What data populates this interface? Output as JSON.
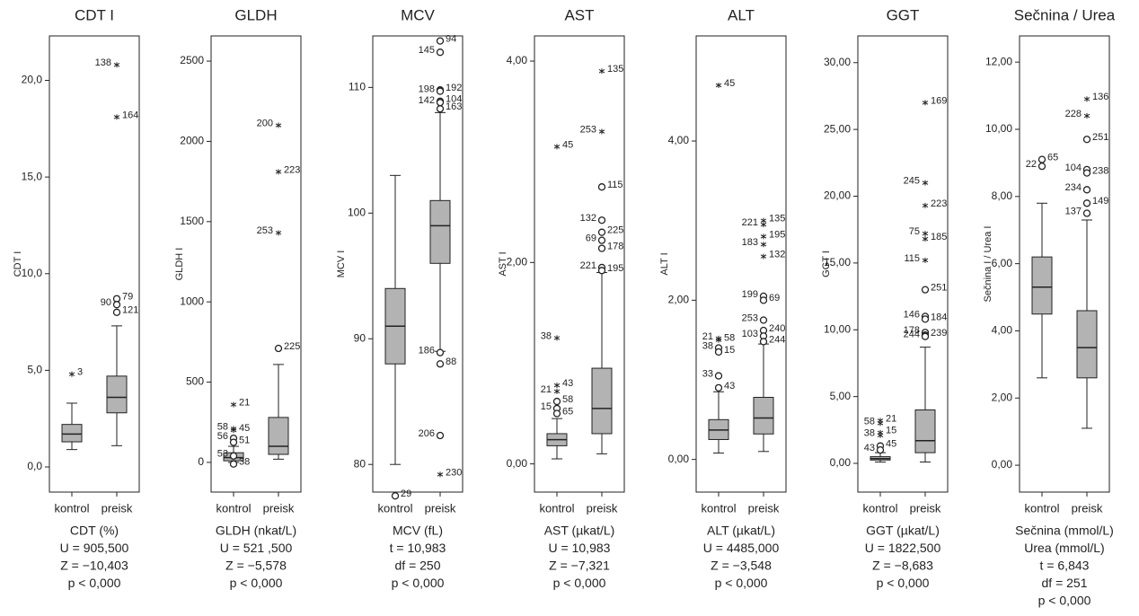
{
  "chart_data": [
    {
      "type": "box",
      "title": "CDT I",
      "y_label": "CDT I",
      "categories": [
        "kontrol",
        "preisk"
      ],
      "color": "#b3b3b3",
      "ylim": [
        -1.3,
        22.3
      ],
      "yticks": [
        {
          "value": 0,
          "label": "0,0"
        },
        {
          "value": 5,
          "label": "5,0"
        },
        {
          "value": 10,
          "label": "10,0"
        },
        {
          "value": 15,
          "label": "15,0"
        },
        {
          "value": 20,
          "label": "20,0"
        }
      ],
      "boxes": [
        {
          "min": 0.9,
          "q1": 1.3,
          "median": 1.7,
          "q3": 2.2,
          "max": 3.3,
          "outliers": [
            {
              "value": 4.8,
              "label": "3",
              "marker": "star"
            }
          ]
        },
        {
          "min": 1.1,
          "q1": 2.8,
          "median": 3.6,
          "q3": 4.7,
          "max": 7.3,
          "outliers": [
            {
              "value": 8.7,
              "label": "79",
              "marker": "circle"
            },
            {
              "value": 8.4,
              "label": "90",
              "marker": "circle"
            },
            {
              "value": 8.0,
              "label": "121",
              "marker": "circle"
            },
            {
              "value": 20.8,
              "label": "138",
              "marker": "star"
            },
            {
              "value": 18.1,
              "label": "164",
              "marker": "star"
            }
          ]
        }
      ],
      "caption": [
        "CDT (%)",
        "U = 905,500",
        "Z = −10,403",
        "p < 0,000"
      ]
    },
    {
      "type": "box",
      "title": "GLDH",
      "y_label": "GLDH I",
      "categories": [
        "kontrol",
        "preisk"
      ],
      "color": "#b3b3b3",
      "ylim": [
        -185,
        2657
      ],
      "yticks": [
        0,
        500,
        1000,
        1500,
        2000,
        2500
      ],
      "boxes": [
        {
          "min": 0,
          "q1": 10,
          "median": 30,
          "q3": 60,
          "max": 100,
          "outliers": [
            {
              "value": 360,
              "label": "21",
              "marker": "star"
            },
            {
              "value": 210,
              "label": "58",
              "marker": "star"
            },
            {
              "value": 200,
              "label": "45",
              "marker": "star"
            },
            {
              "value": 150,
              "label": "56",
              "marker": "circle"
            },
            {
              "value": 125,
              "label": "51",
              "marker": "circle"
            },
            {
              "value": 40,
              "label": "53",
              "marker": "circle"
            },
            {
              "value": -10,
              "label": "38",
              "marker": "circle"
            }
          ]
        },
        {
          "min": 20,
          "q1": 50,
          "median": 100,
          "q3": 280,
          "max": 610,
          "outliers": [
            {
              "value": 710,
              "label": "225",
              "marker": "circle"
            },
            {
              "value": 1430,
              "label": "253",
              "marker": "star"
            },
            {
              "value": 1810,
              "label": "223",
              "marker": "star"
            },
            {
              "value": 2100,
              "label": "200",
              "marker": "star"
            }
          ]
        }
      ],
      "caption": [
        "GLDH (nkat/L)",
        "U = 521 ,500",
        "Z = −5,578",
        "p < 0,000"
      ]
    },
    {
      "type": "box",
      "title": "MCV",
      "y_label": "MCV I",
      "categories": [
        "kontrol",
        "preisk"
      ],
      "color": "#b3b3b3",
      "ylim": [
        77.8,
        114.1
      ],
      "yticks": [
        80,
        90,
        100,
        110
      ],
      "boxes": [
        {
          "min": 80,
          "q1": 88,
          "median": 91,
          "q3": 94,
          "max": 103,
          "outliers": [
            {
              "value": 77.5,
              "label": "29",
              "marker": "circle"
            }
          ]
        },
        {
          "min": 89,
          "q1": 96,
          "median": 99,
          "q3": 101,
          "max": 108,
          "outliers": [
            {
              "value": 113.7,
              "label": "94",
              "marker": "circle"
            },
            {
              "value": 112.8,
              "label": "145",
              "marker": "circle"
            },
            {
              "value": 109.8,
              "label": "192",
              "marker": "circle"
            },
            {
              "value": 109.7,
              "label": "198",
              "marker": "circle"
            },
            {
              "value": 108.9,
              "label": "104",
              "marker": "circle"
            },
            {
              "value": 108.8,
              "label": "142",
              "marker": "circle"
            },
            {
              "value": 108.3,
              "label": "163",
              "marker": "circle"
            },
            {
              "value": 88.9,
              "label": "186",
              "marker": "circle"
            },
            {
              "value": 88,
              "label": "88",
              "marker": "circle"
            },
            {
              "value": 82.3,
              "label": "206",
              "marker": "circle"
            },
            {
              "value": 79.2,
              "label": "230",
              "marker": "star"
            }
          ]
        }
      ],
      "caption": [
        "MCV (fL)",
        "t = 10,983",
        "df = 250",
        "p < 0,000"
      ]
    },
    {
      "type": "box",
      "title": "AST",
      "y_label": "AST I",
      "categories": [
        "kontrol",
        "preisk"
      ],
      "color": "#b3b3b3",
      "ylim": [
        -0.28,
        4.25
      ],
      "yticks": [
        {
          "value": 0,
          "label": "0,00"
        },
        {
          "value": 2,
          "label": "2,00"
        },
        {
          "value": 4,
          "label": "4,00"
        }
      ],
      "boxes": [
        {
          "min": 0.05,
          "q1": 0.18,
          "median": 0.24,
          "q3": 0.3,
          "max": 0.45,
          "outliers": [
            {
              "value": 3.15,
              "label": "45",
              "marker": "star"
            },
            {
              "value": 1.25,
              "label": "38",
              "marker": "star"
            },
            {
              "value": 0.78,
              "label": "43",
              "marker": "star"
            },
            {
              "value": 0.72,
              "label": "21",
              "marker": "star"
            },
            {
              "value": 0.62,
              "label": "58",
              "marker": "circle"
            },
            {
              "value": 0.55,
              "label": "15",
              "marker": "circle"
            },
            {
              "value": 0.5,
              "label": "65",
              "marker": "circle"
            }
          ]
        },
        {
          "min": 0.1,
          "q1": 0.3,
          "median": 0.55,
          "q3": 0.95,
          "max": 1.9,
          "outliers": [
            {
              "value": 3.9,
              "label": "135",
              "marker": "star"
            },
            {
              "value": 3.3,
              "label": "253",
              "marker": "star"
            },
            {
              "value": 2.75,
              "label": "115",
              "marker": "circle"
            },
            {
              "value": 2.42,
              "label": "132",
              "marker": "circle"
            },
            {
              "value": 2.3,
              "label": "225",
              "marker": "circle"
            },
            {
              "value": 2.22,
              "label": "69",
              "marker": "circle"
            },
            {
              "value": 2.14,
              "label": "178",
              "marker": "circle"
            },
            {
              "value": 1.95,
              "label": "221",
              "marker": "circle"
            },
            {
              "value": 1.92,
              "label": "195",
              "marker": "circle"
            }
          ]
        }
      ],
      "caption": [
        "AST (µkat/L)",
        "U = 10,983",
        "Z = −7,321",
        "p < 0,000"
      ]
    },
    {
      "type": "box",
      "title": "ALT",
      "y_label": "ALT I",
      "categories": [
        "kontrol",
        "preisk"
      ],
      "color": "#b3b3b3",
      "ylim": [
        -0.41,
        5.32
      ],
      "yticks": [
        {
          "value": 0,
          "label": "0,00"
        },
        {
          "value": 2,
          "label": "2,00"
        },
        {
          "value": 4,
          "label": "4,00"
        }
      ],
      "boxes": [
        {
          "min": 0.08,
          "q1": 0.25,
          "median": 0.37,
          "q3": 0.5,
          "max": 0.85,
          "outliers": [
            {
              "value": 4.7,
              "label": "45",
              "marker": "star"
            },
            {
              "value": 1.52,
              "label": "21",
              "marker": "star"
            },
            {
              "value": 1.5,
              "label": "58",
              "marker": "star"
            },
            {
              "value": 1.4,
              "label": "38",
              "marker": "circle"
            },
            {
              "value": 1.35,
              "label": "15",
              "marker": "circle"
            },
            {
              "value": 1.05,
              "label": "33",
              "marker": "circle"
            },
            {
              "value": 0.9,
              "label": "43",
              "marker": "circle"
            }
          ]
        },
        {
          "min": 0.1,
          "q1": 0.32,
          "median": 0.52,
          "q3": 0.78,
          "max": 1.45,
          "outliers": [
            {
              "value": 3.0,
              "label": "135",
              "marker": "star"
            },
            {
              "value": 2.95,
              "label": "221",
              "marker": "star"
            },
            {
              "value": 2.8,
              "label": "195",
              "marker": "star"
            },
            {
              "value": 2.7,
              "label": "183",
              "marker": "star"
            },
            {
              "value": 2.55,
              "label": "132",
              "marker": "star"
            },
            {
              "value": 2.05,
              "label": "199",
              "marker": "circle"
            },
            {
              "value": 2.0,
              "label": "69",
              "marker": "circle"
            },
            {
              "value": 1.75,
              "label": "253",
              "marker": "circle"
            },
            {
              "value": 1.62,
              "label": "240",
              "marker": "circle"
            },
            {
              "value": 1.55,
              "label": "103",
              "marker": "circle"
            },
            {
              "value": 1.48,
              "label": "244",
              "marker": "circle"
            }
          ]
        }
      ],
      "caption": [
        "ALT (µkat/L)",
        "U = 4485,000",
        "Z = −3,548",
        "p < 0,000"
      ]
    },
    {
      "type": "box",
      "title": "GGT",
      "y_label": "GGT I",
      "categories": [
        "kontrol",
        "preisk"
      ],
      "color": "#b3b3b3",
      "ylim": [
        -2.15,
        32.0
      ],
      "yticks": [
        {
          "value": 0,
          "label": "0,00"
        },
        {
          "value": 5,
          "label": "5,00"
        },
        {
          "value": 10,
          "label": "10,00"
        },
        {
          "value": 15,
          "label": "15,00"
        },
        {
          "value": 20,
          "label": "20,00"
        },
        {
          "value": 25,
          "label": "25,00"
        },
        {
          "value": 30,
          "label": "30,00"
        }
      ],
      "boxes": [
        {
          "min": 0.1,
          "q1": 0.25,
          "median": 0.35,
          "q3": 0.5,
          "max": 0.8,
          "outliers": [
            {
              "value": 3.2,
              "label": "21",
              "marker": "star"
            },
            {
              "value": 3.0,
              "label": "58",
              "marker": "star"
            },
            {
              "value": 2.3,
              "label": "15",
              "marker": "star"
            },
            {
              "value": 2.1,
              "label": "38",
              "marker": "star"
            },
            {
              "value": 1.3,
              "label": "45",
              "marker": "circle"
            },
            {
              "value": 1.0,
              "label": "43",
              "marker": "circle"
            }
          ]
        },
        {
          "min": 0.1,
          "q1": 0.8,
          "median": 1.7,
          "q3": 4.0,
          "max": 8.7,
          "outliers": [
            {
              "value": 27,
              "label": "169",
              "marker": "star"
            },
            {
              "value": 21,
              "label": "245",
              "marker": "star"
            },
            {
              "value": 19.3,
              "label": "223",
              "marker": "star"
            },
            {
              "value": 17.2,
              "label": "75",
              "marker": "star"
            },
            {
              "value": 16.8,
              "label": "185",
              "marker": "star"
            },
            {
              "value": 15.2,
              "label": "115",
              "marker": "star"
            },
            {
              "value": 13,
              "label": "251",
              "marker": "circle"
            },
            {
              "value": 11,
              "label": "146",
              "marker": "circle"
            },
            {
              "value": 10.8,
              "label": "184",
              "marker": "circle"
            },
            {
              "value": 9.8,
              "label": "178",
              "marker": "circle"
            },
            {
              "value": 9.6,
              "label": "239",
              "marker": "circle"
            },
            {
              "value": 9.5,
              "label": "244",
              "marker": "circle"
            }
          ]
        }
      ],
      "caption": [
        "GGT (µkat/L)",
        "U = 1822,500",
        "Z = −8,683",
        "p < 0,000"
      ]
    },
    {
      "type": "box",
      "title": "Sečnina / Urea",
      "y_label": "Sečnina I / Urea I",
      "categories": [
        "kontrol",
        "preisk"
      ],
      "color": "#b3b3b3",
      "ylim": [
        -0.8,
        12.78
      ],
      "yticks": [
        {
          "value": 0,
          "label": "0,00"
        },
        {
          "value": 2,
          "label": "2,00"
        },
        {
          "value": 4,
          "label": "4,00"
        },
        {
          "value": 6,
          "label": "6,00"
        },
        {
          "value": 8,
          "label": "8,00"
        },
        {
          "value": 10,
          "label": "10,00"
        },
        {
          "value": 12,
          "label": "12,00"
        }
      ],
      "boxes": [
        {
          "min": 2.6,
          "q1": 4.5,
          "median": 5.3,
          "q3": 6.2,
          "max": 7.8,
          "outliers": [
            {
              "value": 9.1,
              "label": "65",
              "marker": "circle"
            },
            {
              "value": 8.9,
              "label": "22",
              "marker": "circle"
            }
          ]
        },
        {
          "min": 1.1,
          "q1": 2.6,
          "median": 3.5,
          "q3": 4.6,
          "max": 7.3,
          "outliers": [
            {
              "value": 10.9,
              "label": "136",
              "marker": "star"
            },
            {
              "value": 10.4,
              "label": "228",
              "marker": "star"
            },
            {
              "value": 9.7,
              "label": "251",
              "marker": "circle"
            },
            {
              "value": 8.8,
              "label": "104",
              "marker": "circle"
            },
            {
              "value": 8.7,
              "label": "238",
              "marker": "circle"
            },
            {
              "value": 8.2,
              "label": "234",
              "marker": "circle"
            },
            {
              "value": 7.8,
              "label": "149",
              "marker": "circle"
            },
            {
              "value": 7.5,
              "label": "137",
              "marker": "circle"
            }
          ]
        }
      ],
      "caption": [
        "Sečnina (mmol/L)",
        "Urea (mmol/L)",
        "t = 6,843",
        "df = 251",
        "p < 0,000"
      ]
    }
  ]
}
